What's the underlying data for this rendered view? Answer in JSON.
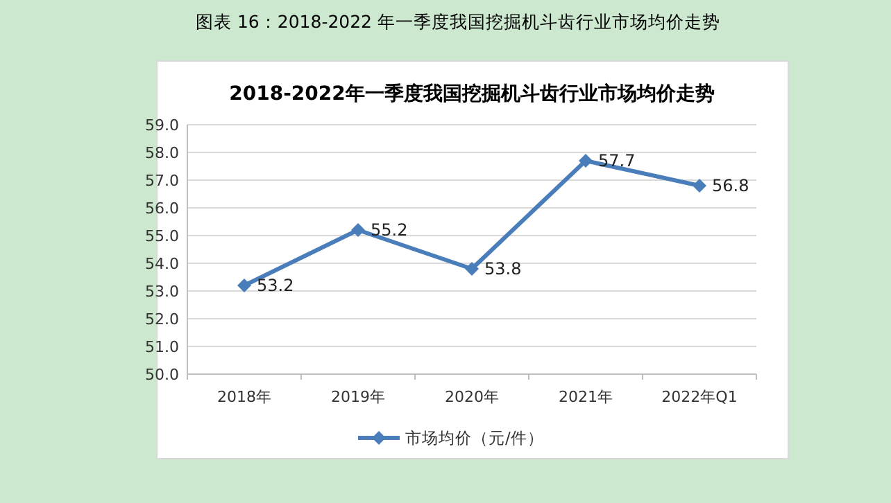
{
  "chart_data": {
    "type": "line",
    "title": "2018-2022年一季度我国挖掘机斗齿行业市场均价走势",
    "annotations": [
      "图表 16：2018-2022 年一季度我国挖掘机斗齿行业市场均价走势"
    ],
    "categories": [
      "2018年",
      "2019年",
      "2020年",
      "2021年",
      "2022年Q1"
    ],
    "series": [
      {
        "name": "市场均价（元/件）",
        "color": "#4a7ebb",
        "values": [
          53.2,
          55.2,
          53.8,
          57.7,
          56.8
        ]
      }
    ],
    "ylim": [
      50,
      59
    ],
    "yticks": [
      {
        "value": 50,
        "label": "50.0"
      },
      {
        "value": 51,
        "label": "51.0"
      },
      {
        "value": 52,
        "label": "52.0"
      },
      {
        "value": 53,
        "label": "53.0"
      },
      {
        "value": 54,
        "label": "54.0"
      },
      {
        "value": 55,
        "label": "55.0"
      },
      {
        "value": 56,
        "label": "56.0"
      },
      {
        "value": 57,
        "label": "57.0"
      },
      {
        "value": 58,
        "label": "58.0"
      },
      {
        "value": 59,
        "label": "59.0"
      }
    ],
    "grid": "y",
    "legend": "bottom",
    "marker": "diamond",
    "line_style": "solid",
    "data_labels": true
  }
}
